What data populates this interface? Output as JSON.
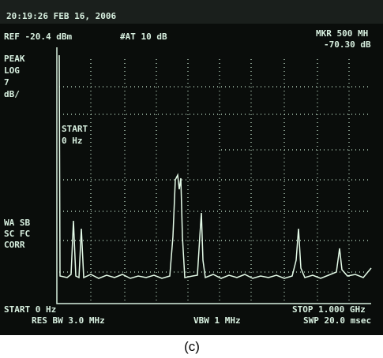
{
  "screen": {
    "timestamp": "20:19:26 FEB 16, 2006",
    "reference": "REF -20.4 dBm",
    "attenuation": "#AT 10 dB",
    "marker_freq": "MKR 500 MH",
    "marker_level": "-70.30 dB",
    "left_labels": [
      "PEAK",
      "LOG",
      "7",
      "dB/"
    ],
    "start_inner": [
      "START",
      "0 Hz"
    ],
    "mode_labels": [
      "WA SB",
      "SC FC",
      "CORR"
    ],
    "start": "START 0 Hz",
    "res_bw": "RES BW 3.0 MHz",
    "vbw": "VBW 1 MHz",
    "stop": "STOP 1.000 GHz",
    "sweep": "SWP 20.0 msec"
  },
  "caption": "(c)"
}
